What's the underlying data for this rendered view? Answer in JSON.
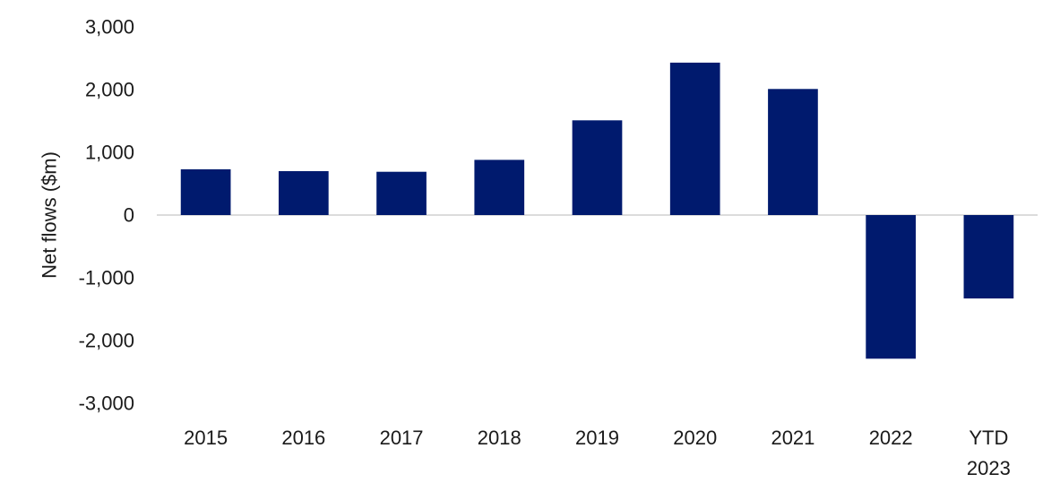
{
  "chart_data": {
    "type": "bar",
    "categories": [
      "2015",
      "2016",
      "2017",
      "2018",
      "2019",
      "2020",
      "2021",
      "2022",
      "YTD\n2023"
    ],
    "values": [
      730,
      700,
      690,
      880,
      1510,
      2430,
      2010,
      -2290,
      -1330
    ],
    "title": "",
    "xlabel": "",
    "ylabel": "Net flows ($m)",
    "ylim": [
      -3000,
      3000
    ],
    "yticks": [
      3000,
      2000,
      1000,
      0,
      -1000,
      -2000,
      -3000
    ],
    "ytick_labels": [
      "3,000",
      "2,000",
      "1,000",
      "0",
      "-1,000",
      "-2,000",
      "-3,000"
    ],
    "grid": false,
    "legend": "none",
    "colors": {
      "bar": "#001a6e",
      "zero_line": "#d0d0d0"
    }
  }
}
